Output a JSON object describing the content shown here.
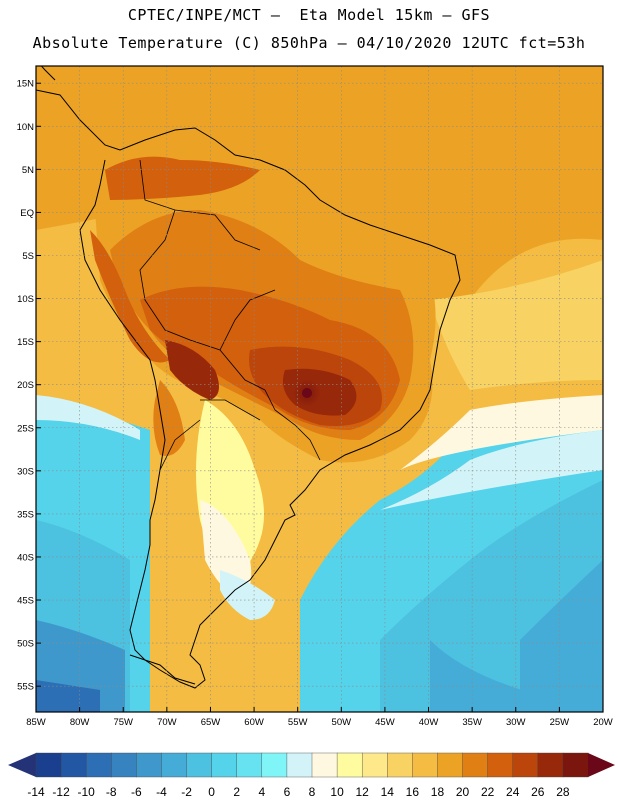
{
  "header": {
    "line1": "CPTEC/INPE/MCT –  Eta Model 15km – GFS",
    "line2": "Absolute Temperature (C) 850hPa – 04/10/2020 12UTC fct=53h"
  },
  "map": {
    "lon_range": [
      -85,
      -20
    ],
    "lat_range": [
      -58,
      17
    ],
    "lat_ticks": [
      {
        "v": 15,
        "label": "15N"
      },
      {
        "v": 10,
        "label": "10N"
      },
      {
        "v": 5,
        "label": "5N"
      },
      {
        "v": 0,
        "label": "EQ"
      },
      {
        "v": -5,
        "label": "5S"
      },
      {
        "v": -10,
        "label": "10S"
      },
      {
        "v": -15,
        "label": "15S"
      },
      {
        "v": -20,
        "label": "20S"
      },
      {
        "v": -25,
        "label": "25S"
      },
      {
        "v": -30,
        "label": "30S"
      },
      {
        "v": -35,
        "label": "35S"
      },
      {
        "v": -40,
        "label": "40S"
      },
      {
        "v": -45,
        "label": "45S"
      },
      {
        "v": -50,
        "label": "50S"
      },
      {
        "v": -55,
        "label": "55S"
      }
    ],
    "lon_ticks": [
      {
        "v": -85,
        "label": "85W"
      },
      {
        "v": -80,
        "label": "80W"
      },
      {
        "v": -75,
        "label": "75W"
      },
      {
        "v": -70,
        "label": "70W"
      },
      {
        "v": -65,
        "label": "65W"
      },
      {
        "v": -60,
        "label": "60W"
      },
      {
        "v": -55,
        "label": "55W"
      },
      {
        "v": -50,
        "label": "50W"
      },
      {
        "v": -45,
        "label": "45W"
      },
      {
        "v": -40,
        "label": "40W"
      },
      {
        "v": -35,
        "label": "35W"
      },
      {
        "v": -30,
        "label": "30W"
      },
      {
        "v": -25,
        "label": "25W"
      },
      {
        "v": -20,
        "label": "20W"
      }
    ],
    "gridlines": true
  },
  "colorbar": {
    "labels": [
      "-14",
      "-12",
      "-10",
      "-8",
      "-6",
      "-4",
      "-2",
      "0",
      "2",
      "4",
      "6",
      "8",
      "10",
      "12",
      "14",
      "16",
      "18",
      "20",
      "22",
      "24",
      "26",
      "28"
    ],
    "colors": [
      "#1a3f8f",
      "#2257a4",
      "#2c6fb5",
      "#3683c0",
      "#3f98cc",
      "#45acd8",
      "#4cc1e0",
      "#55d3ea",
      "#67e2f0",
      "#7ff5f7",
      "#d2f4f8",
      "#fff8e0",
      "#fffca0",
      "#fde98a",
      "#f8d262",
      "#f4bc42",
      "#eca325",
      "#e07f14",
      "#d2600d",
      "#bb450b",
      "#98280a",
      "#7a160d"
    ],
    "underflow_color": "#243277",
    "overflow_color": "#6a0719"
  }
}
